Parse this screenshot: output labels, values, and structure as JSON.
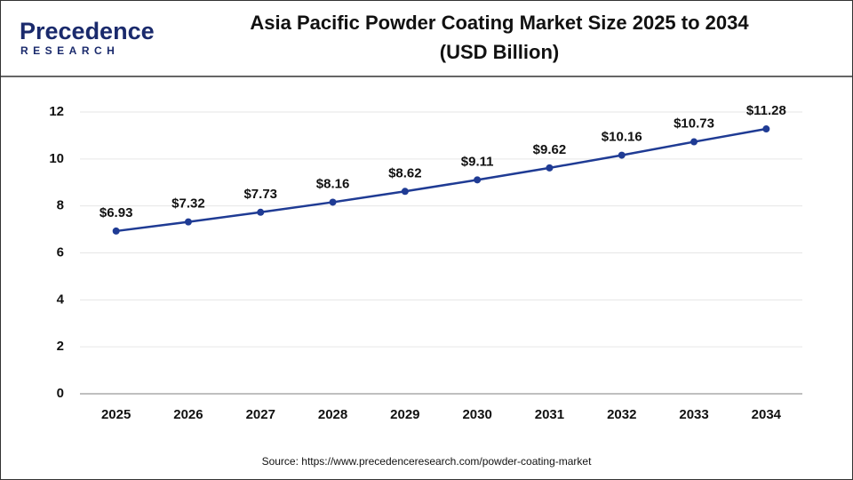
{
  "chart_data": {
    "type": "line",
    "logo": {
      "name": "Precedence",
      "tagline": "RESEARCH"
    },
    "title": "Asia Pacific Powder Coating Market Size 2025 to 2034",
    "subtitle": "(USD Billion)",
    "categories": [
      "2025",
      "2026",
      "2027",
      "2028",
      "2029",
      "2030",
      "2031",
      "2032",
      "2033",
      "2034"
    ],
    "values": [
      6.93,
      7.32,
      7.73,
      8.16,
      8.62,
      9.11,
      9.62,
      10.16,
      10.73,
      11.28
    ],
    "value_labels": [
      "$6.93",
      "$7.32",
      "$7.73",
      "$8.16",
      "$8.62",
      "$9.11",
      "$9.62",
      "$10.16",
      "$10.73",
      "$11.28"
    ],
    "color": "#1f3b94",
    "ylim": [
      0,
      12
    ],
    "yticks": [
      0,
      2,
      4,
      6,
      8,
      10,
      12
    ],
    "grid": true,
    "source": "Source: https://www.precedenceresearch.com/powder-coating-market"
  }
}
